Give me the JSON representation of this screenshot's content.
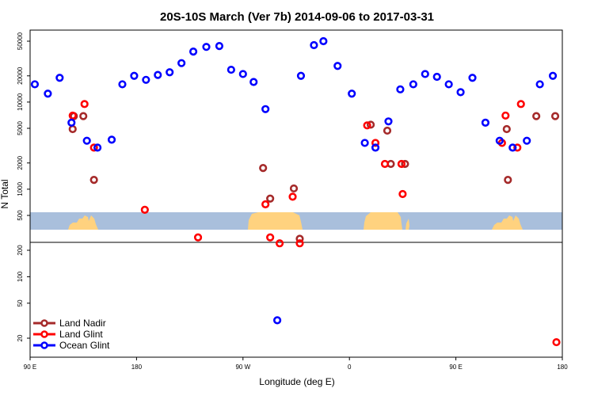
{
  "chart_data": {
    "type": "scatter",
    "title": "20S-10S March (Ver 7b)   2014-09-06 to 2017-03-31",
    "xlabel": "Longitude (deg E)",
    "ylabel": "N Total",
    "x_ticks": [
      {
        "value": 90,
        "label": "90 E"
      },
      {
        "value": 180,
        "label": "180"
      },
      {
        "value": 270,
        "label": "90 W"
      },
      {
        "value": 360,
        "label": "0"
      },
      {
        "value": 450,
        "label": "90 E"
      },
      {
        "value": 540,
        "label": "180"
      }
    ],
    "y_scale": "log",
    "upper_y_ticks": [
      "500",
      "1000",
      "2000",
      "5000",
      "10000",
      "20000",
      "50000"
    ],
    "lower_y_ticks": [
      "20",
      "50",
      "100",
      "200"
    ],
    "legend_position": "bottom-left",
    "series": [
      {
        "name": "Land Nadir",
        "color": "#a52a2a",
        "points": [
          [
            127,
            6900
          ],
          [
            126,
            4900
          ],
          [
            135,
            6900
          ],
          [
            144,
            1280
          ],
          [
            287,
            1750
          ],
          [
            293,
            780
          ],
          [
            313,
            1020
          ],
          [
            318,
            270
          ],
          [
            378,
            5500
          ],
          [
            392,
            4700
          ],
          [
            395,
            1950
          ],
          [
            407,
            1950
          ],
          [
            493,
            4900
          ],
          [
            494,
            1280
          ],
          [
            518,
            6900
          ],
          [
            534,
            6900
          ]
        ]
      },
      {
        "name": "Land Glint",
        "color": "#ff0000",
        "points": [
          [
            126,
            7000
          ],
          [
            136,
            9500
          ],
          [
            144,
            3000
          ],
          [
            187,
            580
          ],
          [
            232,
            280
          ],
          [
            289,
            670
          ],
          [
            293,
            280
          ],
          [
            301,
            240
          ],
          [
            312,
            820
          ],
          [
            318,
            240
          ],
          [
            375,
            5400
          ],
          [
            382,
            3400
          ],
          [
            390,
            1950
          ],
          [
            404,
            1950
          ],
          [
            405,
            880
          ],
          [
            489,
            3400
          ],
          [
            492,
            7000
          ],
          [
            502,
            3000
          ],
          [
            505,
            9500
          ],
          [
            535,
            18
          ]
        ]
      },
      {
        "name": "Ocean Glint",
        "color": "#0000ff",
        "points": [
          [
            94,
            16000
          ],
          [
            105,
            12500
          ],
          [
            115,
            19000
          ],
          [
            125,
            5800
          ],
          [
            138,
            3600
          ],
          [
            147,
            3000
          ],
          [
            159,
            3700
          ],
          [
            168,
            16000
          ],
          [
            178,
            20000
          ],
          [
            188,
            18000
          ],
          [
            198,
            20500
          ],
          [
            208,
            22000
          ],
          [
            218,
            28000
          ],
          [
            228,
            38000
          ],
          [
            239,
            43000
          ],
          [
            250,
            44000
          ],
          [
            260,
            23500
          ],
          [
            270,
            21000
          ],
          [
            279,
            17000
          ],
          [
            289,
            8300
          ],
          [
            299,
            32
          ],
          [
            319,
            20000
          ],
          [
            330,
            45000
          ],
          [
            338,
            50000
          ],
          [
            350,
            26000
          ],
          [
            362,
            12500
          ],
          [
            373,
            3400
          ],
          [
            382,
            3000
          ],
          [
            393,
            6000
          ],
          [
            403,
            14000
          ],
          [
            414,
            16000
          ],
          [
            424,
            21000
          ],
          [
            434,
            19500
          ],
          [
            444,
            16000
          ],
          [
            454,
            13000
          ],
          [
            464,
            19000
          ],
          [
            475,
            5800
          ],
          [
            487,
            3600
          ],
          [
            498,
            3000
          ],
          [
            510,
            3600
          ],
          [
            521,
            16000
          ],
          [
            532,
            20000
          ]
        ]
      }
    ]
  }
}
